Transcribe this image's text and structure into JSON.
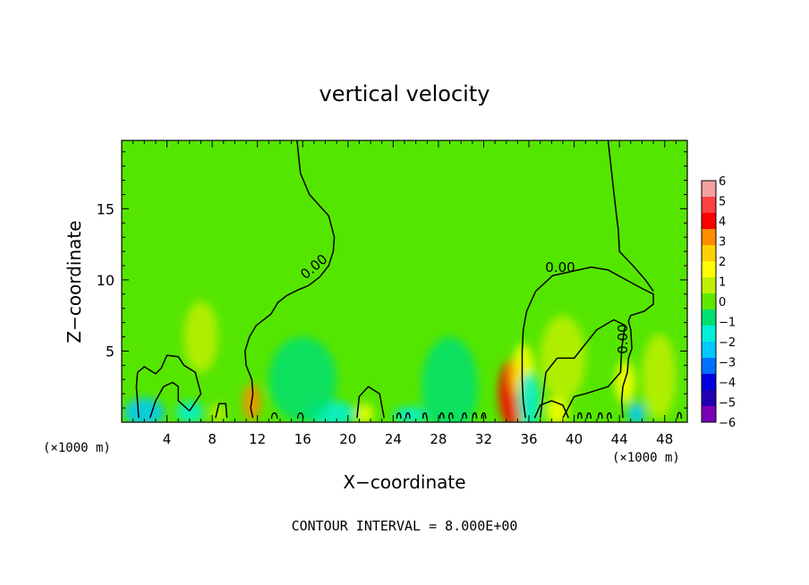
{
  "chart_data": {
    "type": "heatmap",
    "title": "vertical velocity",
    "xlabel": "X−coordinate",
    "ylabel": "Z−coordinate",
    "x_unit_left": "(×1000 m)",
    "x_unit_right": "(×1000 m)",
    "xlim": [
      0,
      50
    ],
    "ylim": [
      0,
      19.8
    ],
    "x_ticks": [
      4,
      8,
      12,
      16,
      20,
      24,
      28,
      32,
      36,
      40,
      44,
      48
    ],
    "x_tick_labels": [
      "4",
      "8",
      "12",
      "16",
      "20",
      "24",
      "28",
      "32",
      "36",
      "40",
      "44",
      "48"
    ],
    "y_ticks": [
      5,
      10,
      15
    ],
    "y_tick_labels": [
      "5",
      "10",
      "15"
    ],
    "colorbar": {
      "min": -6,
      "max": 6,
      "levels": [
        6,
        5,
        4,
        3,
        2,
        1,
        0,
        -1,
        -2,
        -3,
        -4,
        -5,
        -6
      ],
      "labels": [
        "6",
        "5",
        "4",
        "3",
        "2",
        "1",
        "0",
        "−1",
        "−2",
        "−3",
        "−4",
        "−5",
        "−6"
      ],
      "colors": [
        "#f2a0a0",
        "#ff4040",
        "#ff0000",
        "#ff8c00",
        "#ffd000",
        "#ffff00",
        "#bff000",
        "#5ee800",
        "#00e070",
        "#00f0d8",
        "#00c8ff",
        "#0070ff",
        "#0000e0",
        "#2000b0",
        "#7a00b8"
      ]
    },
    "background_color": "#55e600",
    "contour_labels": [
      "0.00",
      "0.00",
      "0.00"
    ],
    "features": [
      {
        "x": 11.5,
        "z": 1.4,
        "w": 0.8,
        "h": 1.3,
        "value": 3.0
      },
      {
        "x": 34.5,
        "z": 2.0,
        "w": 1.2,
        "h": 2.4,
        "value": 4.0
      },
      {
        "x": 35.5,
        "z": 3.5,
        "w": 1.0,
        "h": 2.0,
        "value": 1.5
      },
      {
        "x": 38.5,
        "z": 0.8,
        "w": 1.0,
        "h": 1.0,
        "value": 1.5
      },
      {
        "x": 44.5,
        "z": 2.8,
        "w": 0.9,
        "h": 1.5,
        "value": 1.2
      },
      {
        "x": 47.5,
        "z": 3.2,
        "w": 1.5,
        "h": 3.0,
        "value": 1.0
      },
      {
        "x": 21.5,
        "z": 0.6,
        "w": 0.7,
        "h": 0.7,
        "value": 1.2
      },
      {
        "x": 8.5,
        "z": 0.6,
        "w": 0.7,
        "h": 0.7,
        "value": 1.0
      },
      {
        "x": 2.0,
        "z": 0.7,
        "w": 1.8,
        "h": 1.0,
        "value": -2.0
      },
      {
        "x": 6.0,
        "z": 0.7,
        "w": 1.2,
        "h": 0.8,
        "value": -1.3
      },
      {
        "x": 18.5,
        "z": 0.6,
        "w": 2.2,
        "h": 0.9,
        "value": -1.8
      },
      {
        "x": 25.5,
        "z": 0.5,
        "w": 1.5,
        "h": 0.6,
        "value": -1.2
      },
      {
        "x": 29.0,
        "z": 2.5,
        "w": 2.5,
        "h": 3.5,
        "value": -0.8
      },
      {
        "x": 36.0,
        "z": 1.5,
        "w": 1.0,
        "h": 2.0,
        "value": -1.5
      },
      {
        "x": 45.5,
        "z": 0.6,
        "w": 0.8,
        "h": 0.8,
        "value": -2.2
      },
      {
        "x": 16.0,
        "z": 3.0,
        "w": 3.0,
        "h": 3.0,
        "value": -0.6
      },
      {
        "x": 39.0,
        "z": 4.5,
        "w": 2.0,
        "h": 3.0,
        "value": 0.6
      },
      {
        "x": 7.0,
        "z": 6.0,
        "w": 1.5,
        "h": 2.5,
        "value": 0.5
      }
    ],
    "contours": [
      [
        [
          15.5,
          19.8
        ],
        [
          15.8,
          17.5
        ],
        [
          16.6,
          16.0
        ],
        [
          18.3,
          14.5
        ],
        [
          18.8,
          13.0
        ],
        [
          18.7,
          12.0
        ],
        [
          18.3,
          11.0
        ],
        [
          17.5,
          10.2
        ],
        [
          16.5,
          9.6
        ],
        [
          15.6,
          9.3
        ],
        [
          14.6,
          8.9
        ],
        [
          13.8,
          8.4
        ],
        [
          13.2,
          7.6
        ],
        [
          11.9,
          6.8
        ],
        [
          11.3,
          6.0
        ],
        [
          10.9,
          5.0
        ],
        [
          11.0,
          4.0
        ],
        [
          11.5,
          3.0
        ],
        [
          11.6,
          2.0
        ],
        [
          11.4,
          1.0
        ],
        [
          11.6,
          0.3
        ]
      ],
      [
        [
          35.7,
          0.3
        ],
        [
          35.5,
          1.5
        ],
        [
          35.4,
          3.0
        ],
        [
          35.4,
          5.0
        ],
        [
          35.5,
          6.5
        ],
        [
          35.8,
          7.8
        ],
        [
          36.6,
          9.2
        ],
        [
          38.1,
          10.3
        ],
        [
          39.8,
          10.6
        ],
        [
          41.5,
          10.9
        ],
        [
          43.0,
          10.7
        ],
        [
          44.6,
          10.0
        ],
        [
          46.0,
          9.4
        ],
        [
          47.0,
          9.0
        ],
        [
          47.0,
          8.3
        ],
        [
          46.2,
          7.8
        ],
        [
          45.0,
          7.5
        ],
        [
          44.8,
          7.1
        ],
        [
          45.0,
          6.5
        ],
        [
          45.1,
          5.2
        ],
        [
          44.8,
          4.5
        ],
        [
          44.7,
          3.5
        ],
        [
          44.3,
          2.5
        ],
        [
          44.2,
          1.5
        ],
        [
          44.3,
          0.3
        ]
      ],
      [
        [
          43.0,
          19.8
        ],
        [
          43.6,
          15.5
        ],
        [
          43.9,
          13.5
        ],
        [
          44.0,
          12.0
        ],
        [
          45.2,
          11.0
        ],
        [
          46.3,
          10.0
        ],
        [
          47.0,
          9.2
        ]
      ],
      [
        [
          1.5,
          0.3
        ],
        [
          1.3,
          2.5
        ],
        [
          1.4,
          3.5
        ],
        [
          2.0,
          3.9
        ],
        [
          3.0,
          3.4
        ],
        [
          3.5,
          3.8
        ],
        [
          4.0,
          4.7
        ],
        [
          5.0,
          4.6
        ],
        [
          5.5,
          4.0
        ],
        [
          6.5,
          3.5
        ],
        [
          7.0,
          2.0
        ],
        [
          6.0,
          0.8
        ],
        [
          5.0,
          1.5
        ],
        [
          5.0,
          2.5
        ],
        [
          4.5,
          2.8
        ],
        [
          3.7,
          2.5
        ],
        [
          3.0,
          1.5
        ],
        [
          2.5,
          0.3
        ]
      ],
      [
        [
          8.3,
          0.3
        ],
        [
          8.6,
          1.3
        ],
        [
          9.2,
          1.3
        ],
        [
          9.3,
          0.3
        ]
      ],
      [
        [
          20.8,
          0.3
        ],
        [
          21.0,
          1.8
        ],
        [
          21.8,
          2.5
        ],
        [
          22.8,
          2.0
        ],
        [
          23.2,
          0.3
        ]
      ],
      [
        [
          36.5,
          0.3
        ],
        [
          37.0,
          1.2
        ],
        [
          38.0,
          1.5
        ],
        [
          39.0,
          1.2
        ],
        [
          39.5,
          0.3
        ]
      ],
      [
        [
          37.0,
          0.3
        ],
        [
          37.5,
          3.5
        ],
        [
          38.5,
          4.5
        ],
        [
          40.0,
          4.5
        ],
        [
          41.0,
          5.5
        ],
        [
          42.0,
          6.5
        ],
        [
          43.5,
          7.2
        ],
        [
          44.5,
          6.8
        ],
        [
          44.2,
          5.2
        ],
        [
          44.1,
          3.5
        ],
        [
          43.0,
          2.5
        ],
        [
          41.0,
          2.0
        ],
        [
          40.0,
          1.8
        ],
        [
          39.0,
          0.3
        ]
      ]
    ],
    "small_loops": [
      {
        "x": 13.5,
        "z": 0.55,
        "w": 0.5,
        "h": 0.45
      },
      {
        "x": 15.8,
        "z": 0.55,
        "w": 0.5,
        "h": 0.45
      },
      {
        "x": 24.5,
        "z": 0.55,
        "w": 0.35,
        "h": 0.45
      },
      {
        "x": 25.3,
        "z": 0.55,
        "w": 0.35,
        "h": 0.45
      },
      {
        "x": 26.8,
        "z": 0.55,
        "w": 0.35,
        "h": 0.45
      },
      {
        "x": 28.3,
        "z": 0.55,
        "w": 0.35,
        "h": 0.45
      },
      {
        "x": 29.1,
        "z": 0.55,
        "w": 0.35,
        "h": 0.45
      },
      {
        "x": 30.3,
        "z": 0.55,
        "w": 0.35,
        "h": 0.45
      },
      {
        "x": 31.2,
        "z": 0.55,
        "w": 0.35,
        "h": 0.45
      },
      {
        "x": 32.0,
        "z": 0.55,
        "w": 0.35,
        "h": 0.45
      },
      {
        "x": 40.5,
        "z": 0.55,
        "w": 0.35,
        "h": 0.45
      },
      {
        "x": 41.3,
        "z": 0.55,
        "w": 0.35,
        "h": 0.45
      },
      {
        "x": 42.3,
        "z": 0.55,
        "w": 0.35,
        "h": 0.45
      },
      {
        "x": 43.1,
        "z": 0.55,
        "w": 0.35,
        "h": 0.45
      },
      {
        "x": 49.3,
        "z": 0.55,
        "w": 0.35,
        "h": 0.55
      }
    ],
    "footer": "CONTOUR INTERVAL = 8.000E+00"
  }
}
